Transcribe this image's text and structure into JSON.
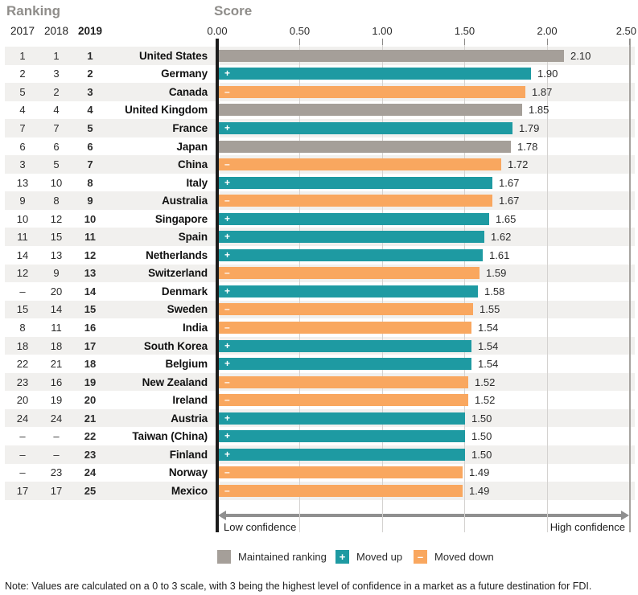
{
  "titles": {
    "ranking": "Ranking",
    "score": "Score"
  },
  "year_columns": [
    "2017",
    "2018",
    "2019"
  ],
  "axis": {
    "ticks": [
      "0.00",
      "0.50",
      "1.00",
      "1.50",
      "2.00",
      "2.50"
    ],
    "min": 0,
    "max": 2.5
  },
  "footer_axis": {
    "low": "Low confidence",
    "high": "High confidence"
  },
  "legend": [
    {
      "label": "Maintained ranking",
      "status": "maintained",
      "symbol": ""
    },
    {
      "label": "Moved up",
      "status": "up",
      "symbol": "+"
    },
    {
      "label": "Moved down",
      "status": "down",
      "symbol": "–"
    }
  ],
  "colors": {
    "maintained": "#a59f99",
    "up": "#1e9aa2",
    "down": "#f9a75f"
  },
  "note": "Note: Values are calculated on a 0 to 3 scale, with 3 being the highest level of confidence in a market as a future destination for FDI.",
  "chart_data": {
    "type": "bar",
    "orientation": "horizontal",
    "title": "Score",
    "xlim": [
      0,
      2.5
    ],
    "rows": [
      {
        "r2017": "1",
        "r2018": "1",
        "r2019": "1",
        "country": "United States",
        "score": "2.10",
        "status": "maintained"
      },
      {
        "r2017": "2",
        "r2018": "3",
        "r2019": "2",
        "country": "Germany",
        "score": "1.90",
        "status": "up"
      },
      {
        "r2017": "5",
        "r2018": "2",
        "r2019": "3",
        "country": "Canada",
        "score": "1.87",
        "status": "down"
      },
      {
        "r2017": "4",
        "r2018": "4",
        "r2019": "4",
        "country": "United Kingdom",
        "score": "1.85",
        "status": "maintained"
      },
      {
        "r2017": "7",
        "r2018": "7",
        "r2019": "5",
        "country": "France",
        "score": "1.79",
        "status": "up"
      },
      {
        "r2017": "6",
        "r2018": "6",
        "r2019": "6",
        "country": "Japan",
        "score": "1.78",
        "status": "maintained"
      },
      {
        "r2017": "3",
        "r2018": "5",
        "r2019": "7",
        "country": "China",
        "score": "1.72",
        "status": "down"
      },
      {
        "r2017": "13",
        "r2018": "10",
        "r2019": "8",
        "country": "Italy",
        "score": "1.67",
        "status": "up"
      },
      {
        "r2017": "9",
        "r2018": "8",
        "r2019": "9",
        "country": "Australia",
        "score": "1.67",
        "status": "down"
      },
      {
        "r2017": "10",
        "r2018": "12",
        "r2019": "10",
        "country": "Singapore",
        "score": "1.65",
        "status": "up"
      },
      {
        "r2017": "11",
        "r2018": "15",
        "r2019": "11",
        "country": "Spain",
        "score": "1.62",
        "status": "up"
      },
      {
        "r2017": "14",
        "r2018": "13",
        "r2019": "12",
        "country": "Netherlands",
        "score": "1.61",
        "status": "up"
      },
      {
        "r2017": "12",
        "r2018": "9",
        "r2019": "13",
        "country": "Switzerland",
        "score": "1.59",
        "status": "down"
      },
      {
        "r2017": "–",
        "r2018": "20",
        "r2019": "14",
        "country": "Denmark",
        "score": "1.58",
        "status": "up"
      },
      {
        "r2017": "15",
        "r2018": "14",
        "r2019": "15",
        "country": "Sweden",
        "score": "1.55",
        "status": "down"
      },
      {
        "r2017": "8",
        "r2018": "11",
        "r2019": "16",
        "country": "India",
        "score": "1.54",
        "status": "down"
      },
      {
        "r2017": "18",
        "r2018": "18",
        "r2019": "17",
        "country": "South Korea",
        "score": "1.54",
        "status": "up"
      },
      {
        "r2017": "22",
        "r2018": "21",
        "r2019": "18",
        "country": "Belgium",
        "score": "1.54",
        "status": "up"
      },
      {
        "r2017": "23",
        "r2018": "16",
        "r2019": "19",
        "country": "New Zealand",
        "score": "1.52",
        "status": "down"
      },
      {
        "r2017": "20",
        "r2018": "19",
        "r2019": "20",
        "country": "Ireland",
        "score": "1.52",
        "status": "down"
      },
      {
        "r2017": "24",
        "r2018": "24",
        "r2019": "21",
        "country": "Austria",
        "score": "1.50",
        "status": "up"
      },
      {
        "r2017": "–",
        "r2018": "–",
        "r2019": "22",
        "country": "Taiwan (China)",
        "score": "1.50",
        "status": "up"
      },
      {
        "r2017": "–",
        "r2018": "–",
        "r2019": "23",
        "country": "Finland",
        "score": "1.50",
        "status": "up"
      },
      {
        "r2017": "–",
        "r2018": "23",
        "r2019": "24",
        "country": "Norway",
        "score": "1.49",
        "status": "down"
      },
      {
        "r2017": "17",
        "r2018": "17",
        "r2019": "25",
        "country": "Mexico",
        "score": "1.49",
        "status": "down"
      }
    ]
  }
}
